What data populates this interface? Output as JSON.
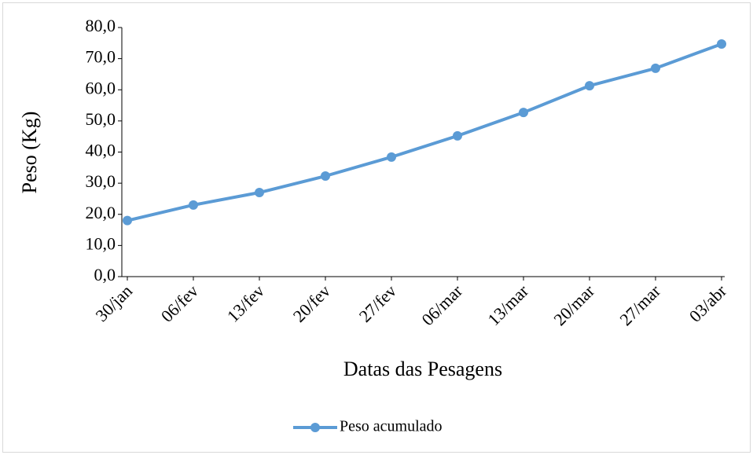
{
  "chart_data": {
    "type": "line",
    "x_label": "Datas das Pesagens",
    "y_label": "Peso (Kg)",
    "categories": [
      "30/jan",
      "06/fev",
      "13/fev",
      "20/fev",
      "27/fev",
      "06/mar",
      "13/mar",
      "20/mar",
      "27/mar",
      "03/abr"
    ],
    "series": [
      {
        "name": "Peso acumulado",
        "color": "#5b9bd5",
        "values": [
          18.0,
          23.0,
          27.0,
          32.3,
          38.4,
          45.2,
          52.7,
          61.3,
          66.9,
          74.7
        ]
      }
    ],
    "ylim": [
      0,
      80
    ],
    "yticks": [
      {
        "value": 0,
        "label": "0,0"
      },
      {
        "value": 10,
        "label": "10,0"
      },
      {
        "value": 20,
        "label": "20,0"
      },
      {
        "value": 30,
        "label": "30,0"
      },
      {
        "value": 40,
        "label": "40,0"
      },
      {
        "value": 50,
        "label": "50,0"
      },
      {
        "value": 60,
        "label": "60,0"
      },
      {
        "value": 70,
        "label": "70,0"
      },
      {
        "value": 80,
        "label": "80,0"
      }
    ],
    "legend": "bottom"
  }
}
